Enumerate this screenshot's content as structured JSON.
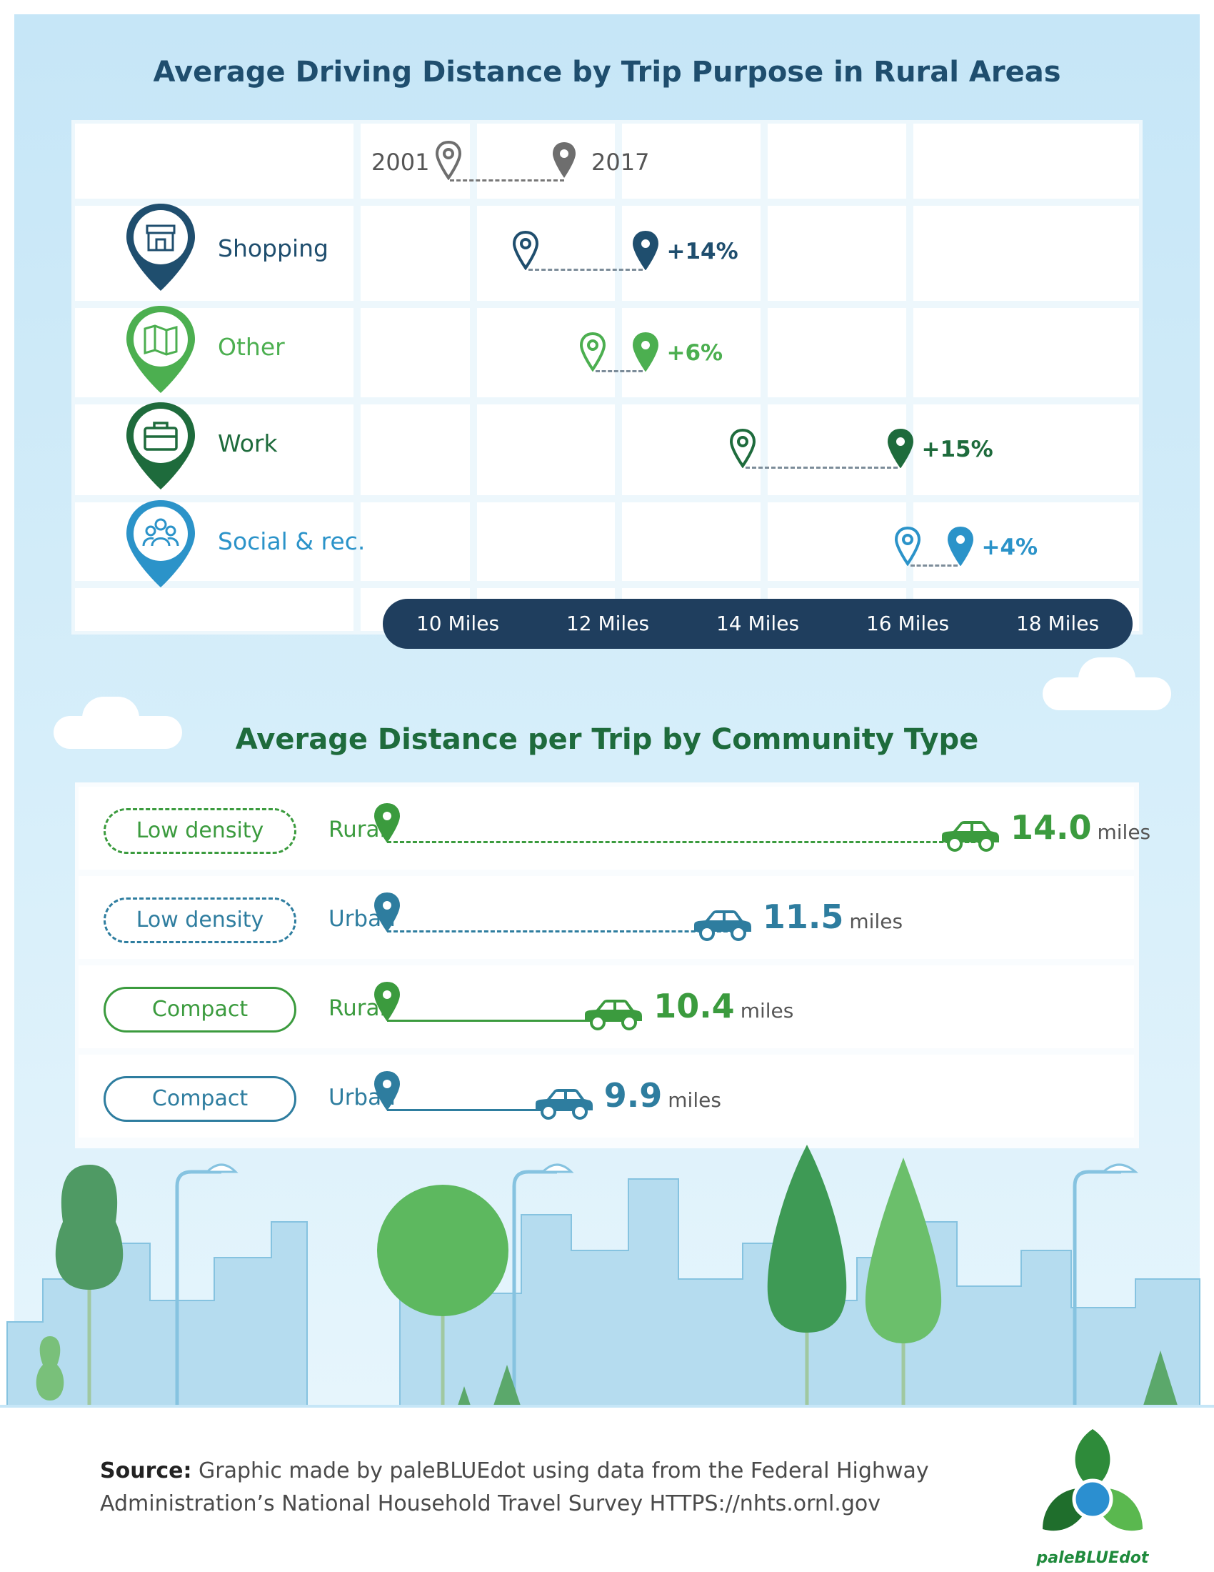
{
  "chart_data": [
    {
      "type": "scatter",
      "title": "Average Driving Distance by Trip Purpose in Rural Areas",
      "legend": [
        "2001",
        "2017"
      ],
      "categories": [
        "Shopping",
        "Other",
        "Work",
        "Social & rec."
      ],
      "series": [
        {
          "name": "2001",
          "values": [
            10.9,
            11.8,
            13.8,
            16.0
          ]
        },
        {
          "name": "2017",
          "values": [
            12.5,
            12.5,
            15.9,
            16.7
          ]
        }
      ],
      "annotations": [
        "+14%",
        "+6%",
        "+15%",
        "+4%"
      ],
      "category_colors": [
        "#1f4e6e",
        "#4caf50",
        "#1e6b3c",
        "#2b93c9"
      ],
      "x_ticks": [
        "10 Miles",
        "12 Miles",
        "14 Miles",
        "16 Miles",
        "18 Miles"
      ],
      "xlim": [
        9,
        19
      ],
      "grid": true,
      "legend_position": "top"
    },
    {
      "type": "bar",
      "title": "Average Distance per Trip by Community Type",
      "categories": [
        "Low density Rural",
        "Low density Urban",
        "Compact Rural",
        "Compact Urban"
      ],
      "rows": [
        {
          "density": "Low density",
          "area": "Rural",
          "value": 14.0,
          "value_label": "14.0",
          "unit": "miles",
          "color": "#3b9b3e",
          "line": "dashed"
        },
        {
          "density": "Low density",
          "area": "Urban",
          "value": 11.5,
          "value_label": "11.5",
          "unit": "miles",
          "color": "#2e7d9f",
          "line": "dashed"
        },
        {
          "density": "Compact",
          "area": "Rural",
          "value": 10.4,
          "value_label": "10.4",
          "unit": "miles",
          "color": "#3b9b3e",
          "line": "solid"
        },
        {
          "density": "Compact",
          "area": "Urban",
          "value": 9.9,
          "value_label": "9.9",
          "unit": "miles",
          "color": "#2e7d9f",
          "line": "solid"
        }
      ],
      "xlim": [
        0,
        14
      ]
    }
  ],
  "footer": {
    "source_label": "Source:",
    "source_text": " Graphic made by paleBLUEdot using data from the Federal Highway Administration’s National Household Travel Survey HTTPS://nhts.ornl.gov",
    "logo_text": "paleBLUEdot"
  },
  "colors": {
    "navy": "#1f3e5e",
    "dark_green": "#1e6b3c",
    "green": "#3b9b3e",
    "blue": "#2e7d9f",
    "sky": "#c6e6f7"
  },
  "icons": [
    "store-icon",
    "map-icon",
    "briefcase-icon",
    "people-icon",
    "map-pin-icon",
    "car-icon",
    "tree-icon",
    "street-lamp-icon"
  ]
}
